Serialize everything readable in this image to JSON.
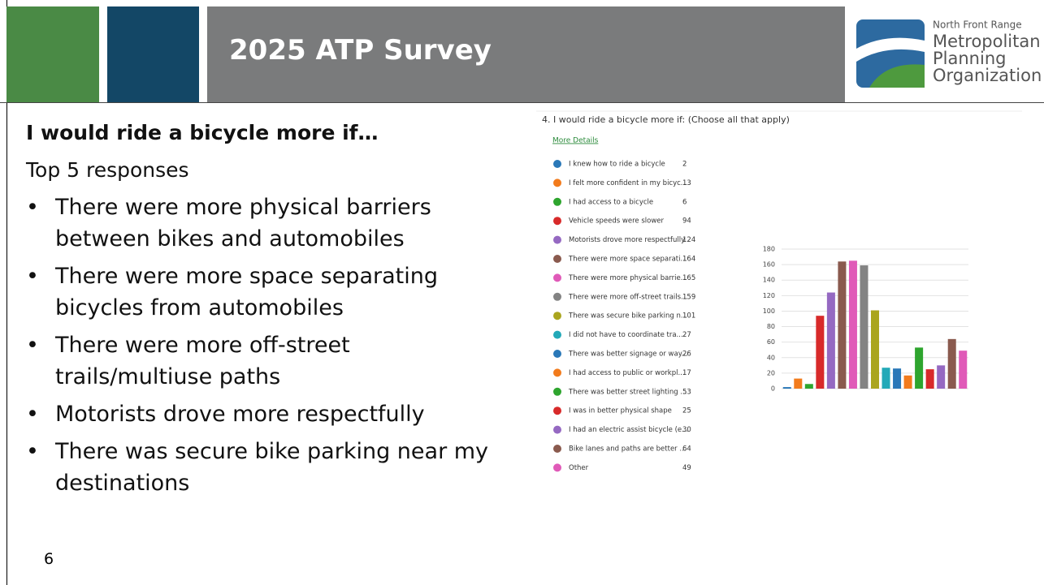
{
  "header": {
    "title": "2025 ATP Survey",
    "logo": [
      "North Front Range",
      "Metropolitan",
      "Planning",
      "Organization"
    ]
  },
  "heading": "I would ride a bicycle more if…",
  "subheading": "Top 5 responses",
  "bullets": [
    "There were more physical barriers between bikes and automobiles",
    "There were more space separating bicycles from automobiles",
    "There were more off-street trails/multiuse paths",
    "Motorists drove more respectfully",
    "There was secure bike parking near my destinations"
  ],
  "page_number": "6",
  "chart_data": {
    "type": "bar",
    "title": "4. I would ride a bicycle more if: (Choose all that apply)",
    "link": "More Details",
    "categories": [
      "I knew how to ride a bicycle",
      "I felt more confident in my bicyc...",
      "I had access to a bicycle",
      "Vehicle speeds were slower",
      "Motorists drove more respectfully",
      "There were more space separati...",
      "There were more physical barrie...",
      "There were more off-street trails...",
      "There was secure bike parking n...",
      "I did not have to coordinate tra...",
      "There was better signage or way...",
      "I had access to public or workpl...",
      "There was better street lighting ...",
      "I was in better physical shape",
      "I had an electric assist bicycle (e...",
      "Bike lanes and paths are better ...",
      "Other"
    ],
    "values": [
      2,
      13,
      6,
      94,
      124,
      164,
      165,
      159,
      101,
      27,
      26,
      17,
      53,
      25,
      30,
      64,
      49
    ],
    "colors": [
      "#2a78b8",
      "#f27b1c",
      "#2ea52e",
      "#d82a2a",
      "#9569c2",
      "#8a5a4e",
      "#e05ab8",
      "#838383",
      "#aaa51e",
      "#23a9b8",
      "#2a78b8",
      "#f27b1c",
      "#2ea52e",
      "#d82a2a",
      "#9569c2",
      "#8a5a4e",
      "#e05ab8"
    ],
    "ylim": [
      0,
      180
    ],
    "yticks": [
      0,
      20,
      40,
      60,
      80,
      100,
      120,
      140,
      160,
      180
    ],
    "grid": true
  }
}
